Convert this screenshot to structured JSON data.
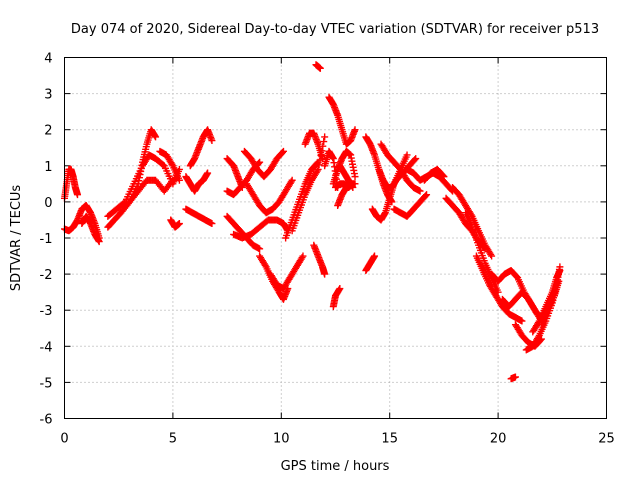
{
  "chart_data": {
    "type": "scatter",
    "title": "Day 074 of 2020, Sidereal Day-to-day VTEC variation (SDTVAR) for receiver p513",
    "xlabel": "GPS time / hours",
    "ylabel": "SDTVAR / TECUs",
    "xlim": [
      0,
      25
    ],
    "ylim": [
      -6,
      4
    ],
    "xticks": [
      0,
      5,
      10,
      15,
      20,
      25
    ],
    "yticks": [
      -6,
      -5,
      -4,
      -3,
      -2,
      -1,
      0,
      1,
      2,
      3,
      4
    ],
    "xtick_labels": [
      "0",
      "5",
      "10",
      "15",
      "20",
      "25"
    ],
    "ytick_labels": [
      "-6",
      "-5",
      "-4",
      "-3",
      "-2",
      "-1",
      "0",
      "1",
      "2",
      "3",
      "4"
    ],
    "grid": true,
    "marker": "plus",
    "color": "#ff0000",
    "series": [
      {
        "name": "s1",
        "x": [
          0.0,
          0.1,
          0.2,
          0.3,
          0.4,
          0.5,
          0.6
        ],
        "y": [
          0.1,
          0.5,
          0.9,
          0.9,
          0.7,
          0.4,
          0.2
        ]
      },
      {
        "name": "s2",
        "x": [
          0.0,
          0.2,
          0.4,
          0.6,
          0.8,
          1.0,
          1.2,
          1.4,
          1.6
        ],
        "y": [
          -0.75,
          -0.8,
          -0.7,
          -0.5,
          -0.2,
          -0.1,
          -0.3,
          -0.6,
          -1.0
        ]
      },
      {
        "name": "s3",
        "x": [
          0.8,
          1.0,
          1.2,
          1.4,
          1.6
        ],
        "y": [
          -0.6,
          -0.4,
          -0.6,
          -0.9,
          -1.1
        ]
      },
      {
        "name": "s4",
        "x": [
          2.0,
          2.3,
          2.6,
          3.0,
          3.4,
          3.6,
          3.8,
          4.0,
          4.2
        ],
        "y": [
          -0.7,
          -0.5,
          -0.3,
          0.0,
          0.5,
          1.1,
          1.6,
          2.0,
          1.8
        ]
      },
      {
        "name": "s5",
        "x": [
          2.0,
          2.4,
          2.8,
          3.2,
          3.6,
          3.9,
          4.2,
          4.6,
          5.0,
          5.3
        ],
        "y": [
          -0.4,
          -0.2,
          0.0,
          0.5,
          1.0,
          1.3,
          1.2,
          1.0,
          0.5,
          0.9
        ]
      },
      {
        "name": "s6",
        "x": [
          2.6,
          3.0,
          3.4,
          3.8,
          4.2,
          4.6,
          5.0
        ],
        "y": [
          -0.3,
          0.0,
          0.3,
          0.6,
          0.6,
          0.3,
          0.6
        ]
      },
      {
        "name": "s7",
        "x": [
          4.4,
          4.7,
          5.0,
          5.3
        ],
        "y": [
          1.4,
          1.3,
          1.0,
          0.6
        ]
      },
      {
        "name": "s8",
        "x": [
          4.9,
          5.1,
          5.3
        ],
        "y": [
          -0.5,
          -0.7,
          -0.6
        ]
      },
      {
        "name": "s9",
        "x": [
          5.8,
          6.0,
          6.2,
          6.4,
          6.6,
          6.8
        ],
        "y": [
          1.0,
          1.2,
          1.5,
          1.8,
          2.0,
          1.7
        ]
      },
      {
        "name": "s10",
        "x": [
          5.6,
          5.8,
          6.0,
          6.2,
          6.4,
          6.6
        ],
        "y": [
          0.7,
          0.5,
          0.3,
          0.5,
          0.6,
          0.8
        ]
      },
      {
        "name": "s11",
        "x": [
          5.6,
          5.9,
          6.2,
          6.5,
          6.8
        ],
        "y": [
          -0.2,
          -0.3,
          -0.4,
          -0.5,
          -0.6
        ]
      },
      {
        "name": "s12",
        "x": [
          7.5,
          7.8,
          8.0,
          8.2
        ],
        "y": [
          1.2,
          1.0,
          0.7,
          0.4
        ]
      },
      {
        "name": "s13",
        "x": [
          7.5,
          7.8,
          8.1,
          8.4,
          8.7,
          9.0
        ],
        "y": [
          0.3,
          0.2,
          0.4,
          0.6,
          0.9,
          1.1
        ]
      },
      {
        "name": "s14",
        "x": [
          7.5,
          7.8,
          8.1,
          8.4,
          8.7,
          9.0
        ],
        "y": [
          -0.4,
          -0.6,
          -0.8,
          -1.0,
          -1.2,
          -1.3
        ]
      },
      {
        "name": "s15",
        "x": [
          8.3,
          8.6,
          8.9,
          9.2,
          9.5,
          9.8,
          10.1
        ],
        "y": [
          1.4,
          1.2,
          0.9,
          0.7,
          0.9,
          1.2,
          1.4
        ]
      },
      {
        "name": "s16",
        "x": [
          8.4,
          8.7,
          9.0,
          9.3,
          9.6,
          9.9,
          10.2,
          10.5
        ],
        "y": [
          0.5,
          0.2,
          -0.1,
          -0.3,
          -0.2,
          0.0,
          0.3,
          0.6
        ]
      },
      {
        "name": "s17",
        "x": [
          7.8,
          8.2,
          8.6,
          9.0,
          9.4,
          9.8,
          10.1,
          10.3
        ],
        "y": [
          -0.9,
          -1.0,
          -0.9,
          -0.7,
          -0.5,
          -0.5,
          -0.6,
          -0.8
        ]
      },
      {
        "name": "s18",
        "x": [
          9.0,
          9.3,
          9.6,
          9.9,
          10.1,
          10.3
        ],
        "y": [
          -1.5,
          -1.8,
          -2.2,
          -2.5,
          -2.7,
          -2.4
        ]
      },
      {
        "name": "s19",
        "x": [
          9.5,
          9.8,
          10.1,
          10.4,
          10.7,
          11.0
        ],
        "y": [
          -2.0,
          -2.3,
          -2.4,
          -2.1,
          -1.8,
          -1.5
        ]
      },
      {
        "name": "s20",
        "x": [
          10.2,
          10.5,
          10.8,
          11.1,
          11.4,
          11.7
        ],
        "y": [
          -1.0,
          -0.5,
          0.0,
          0.5,
          0.9,
          1.1
        ]
      },
      {
        "name": "s21",
        "x": [
          10.5,
          10.8,
          11.1,
          11.4,
          11.7,
          12.0
        ],
        "y": [
          -0.8,
          -0.3,
          0.2,
          0.6,
          0.9,
          1.8
        ]
      },
      {
        "name": "s22",
        "x": [
          11.1,
          11.3,
          11.5,
          11.7,
          11.9
        ],
        "y": [
          1.6,
          1.9,
          1.9,
          1.6,
          1.2
        ]
      },
      {
        "name": "s23",
        "x": [
          11.5,
          11.7,
          11.9,
          12.0
        ],
        "y": [
          -1.2,
          -1.5,
          -1.8,
          -2.0
        ]
      },
      {
        "name": "s24",
        "x": [
          11.6,
          11.8
        ],
        "y": [
          3.8,
          3.7
        ]
      },
      {
        "name": "s25",
        "x": [
          12.0,
          12.2,
          12.4,
          12.6
        ],
        "y": [
          1.0,
          1.4,
          1.2,
          0.4
        ]
      },
      {
        "name": "s26",
        "x": [
          12.2,
          12.4,
          12.6,
          12.8,
          13.0,
          13.2,
          13.4
        ],
        "y": [
          2.9,
          2.7,
          2.4,
          2.0,
          1.6,
          1.7,
          2.0
        ]
      },
      {
        "name": "s27",
        "x": [
          12.4,
          12.6,
          12.8,
          13.0,
          13.2,
          13.4
        ],
        "y": [
          0.5,
          0.9,
          1.2,
          1.4,
          1.3,
          0.7
        ]
      },
      {
        "name": "s28",
        "x": [
          12.5,
          12.7,
          12.9,
          13.1,
          13.3
        ],
        "y": [
          0.4,
          0.5,
          0.5,
          0.4,
          0.5
        ]
      },
      {
        "name": "s29",
        "x": [
          12.6,
          12.8,
          13.0,
          13.2,
          13.4
        ],
        "y": [
          -0.1,
          0.2,
          0.4,
          0.5,
          0.5
        ]
      },
      {
        "name": "s30",
        "x": [
          12.7,
          12.9,
          13.1,
          13.3
        ],
        "y": [
          1.0,
          0.8,
          0.6,
          0.4
        ]
      },
      {
        "name": "s31",
        "x": [
          12.4,
          12.5,
          12.7
        ],
        "y": [
          -2.9,
          -2.6,
          -2.4
        ]
      },
      {
        "name": "s32",
        "x": [
          13.9,
          14.1,
          14.3
        ],
        "y": [
          -1.9,
          -1.7,
          -1.5
        ]
      },
      {
        "name": "s33",
        "x": [
          13.9,
          14.1,
          14.3,
          14.5,
          14.7,
          14.9,
          15.1
        ],
        "y": [
          1.8,
          1.6,
          1.3,
          0.9,
          0.5,
          0.2,
          0.0
        ]
      },
      {
        "name": "s34",
        "x": [
          14.2,
          14.4,
          14.6,
          14.8,
          15.0,
          15.2,
          15.5,
          15.8
        ],
        "y": [
          -0.2,
          -0.4,
          -0.5,
          -0.3,
          0.1,
          0.5,
          0.9,
          1.3
        ]
      },
      {
        "name": "s35",
        "x": [
          14.5,
          14.7,
          14.9,
          15.1,
          15.3,
          15.6,
          15.9,
          16.2
        ],
        "y": [
          0.9,
          0.6,
          0.4,
          0.4,
          0.6,
          0.8,
          1.0,
          1.2
        ]
      },
      {
        "name": "s36",
        "x": [
          14.6,
          14.9,
          15.2,
          15.5,
          15.8,
          16.1,
          16.4
        ],
        "y": [
          1.6,
          1.3,
          1.1,
          0.9,
          0.6,
          0.4,
          0.3
        ]
      },
      {
        "name": "s37",
        "x": [
          15.2,
          15.5,
          15.8,
          16.1,
          16.4,
          16.7
        ],
        "y": [
          -0.2,
          -0.3,
          -0.4,
          -0.2,
          0.0,
          0.2
        ]
      },
      {
        "name": "s38",
        "x": [
          15.8,
          16.1,
          16.4,
          16.7,
          17.0,
          17.3,
          17.6,
          17.9
        ],
        "y": [
          0.9,
          0.8,
          0.6,
          0.7,
          0.8,
          0.7,
          0.5,
          0.3
        ]
      },
      {
        "name": "s39",
        "x": [
          16.6,
          16.9,
          17.2,
          17.5
        ],
        "y": [
          0.6,
          0.8,
          0.9,
          0.7
        ]
      },
      {
        "name": "s40",
        "x": [
          17.6,
          17.9,
          18.2,
          18.5,
          18.8,
          19.1,
          19.4
        ],
        "y": [
          0.1,
          -0.1,
          -0.3,
          -0.6,
          -0.8,
          -1.1,
          -1.3
        ]
      },
      {
        "name": "s41",
        "x": [
          17.9,
          18.2,
          18.5,
          18.8,
          19.1,
          19.4,
          19.7
        ],
        "y": [
          0.4,
          0.2,
          -0.1,
          -0.4,
          -0.8,
          -1.2,
          -1.5
        ]
      },
      {
        "name": "s42",
        "x": [
          18.5,
          18.8,
          19.1,
          19.4,
          19.7,
          20.0
        ],
        "y": [
          -0.3,
          -0.7,
          -1.2,
          -1.7,
          -2.1,
          -2.5
        ]
      },
      {
        "name": "s43",
        "x": [
          19.0,
          19.3,
          19.6,
          19.9,
          20.2,
          20.5,
          20.8,
          21.1
        ],
        "y": [
          -1.5,
          -1.9,
          -2.3,
          -2.6,
          -2.9,
          -3.1,
          -3.2,
          -3.3
        ]
      },
      {
        "name": "s44",
        "x": [
          19.7,
          20.0,
          20.3,
          20.6,
          20.9,
          21.2,
          21.5,
          21.8
        ],
        "y": [
          -2.0,
          -2.2,
          -2.0,
          -1.9,
          -2.1,
          -2.5,
          -2.8,
          -3.1
        ]
      },
      {
        "name": "s45",
        "x": [
          20.2,
          20.5,
          20.8,
          21.1,
          21.4,
          21.7,
          22.0
        ],
        "y": [
          -2.7,
          -2.9,
          -2.7,
          -2.5,
          -2.7,
          -3.0,
          -3.3
        ]
      },
      {
        "name": "s46",
        "x": [
          20.8,
          21.1,
          21.4,
          21.7,
          22.0
        ],
        "y": [
          -3.4,
          -3.7,
          -3.9,
          -4.0,
          -3.8
        ]
      },
      {
        "name": "s47",
        "x": [
          20.6,
          20.8
        ],
        "y": [
          -4.9,
          -4.85
        ]
      },
      {
        "name": "s48",
        "x": [
          21.3,
          21.6,
          21.9,
          22.2,
          22.5,
          22.7,
          22.85
        ],
        "y": [
          -4.1,
          -4.0,
          -3.7,
          -3.3,
          -2.8,
          -2.3,
          -1.8
        ]
      },
      {
        "name": "s49",
        "x": [
          21.6,
          21.9,
          22.2,
          22.5,
          22.7,
          22.85
        ],
        "y": [
          -3.6,
          -3.3,
          -2.9,
          -2.5,
          -2.1,
          -1.9
        ]
      },
      {
        "name": "s50",
        "x": [
          22.0,
          22.3,
          22.6,
          22.8
        ],
        "y": [
          -3.4,
          -3.0,
          -2.6,
          -2.2
        ]
      }
    ]
  }
}
